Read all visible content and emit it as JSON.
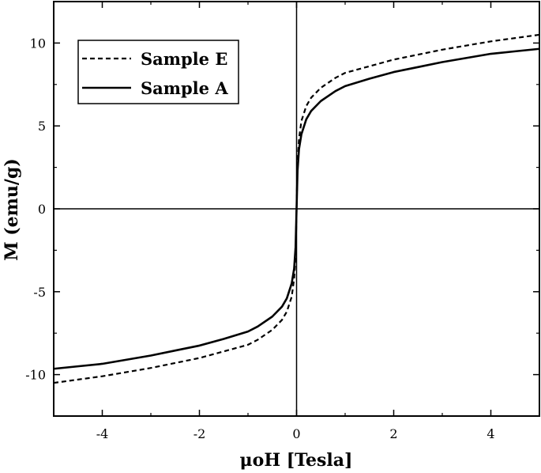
{
  "chart_data": {
    "type": "line",
    "title": "",
    "xlabel": "μoH [Tesla]",
    "ylabel": "M (emu/g)",
    "xlim": [
      -5,
      5
    ],
    "ylim": [
      -12.5,
      12.5
    ],
    "x_ticks": [
      -4,
      -2,
      0,
      2,
      4
    ],
    "x_tick_labels": [
      "-4",
      "-2",
      "0",
      "2",
      "4"
    ],
    "y_ticks": [
      -10,
      -5,
      0,
      5,
      10
    ],
    "y_tick_labels": [
      "-10",
      "-5",
      "0",
      "5",
      "10"
    ],
    "grid": false,
    "legend_position": "top-left",
    "series": [
      {
        "name": "Sample E",
        "line_style": "dashed",
        "color": "#000000",
        "x": [
          0.0,
          0.02,
          0.05,
          0.1,
          0.2,
          0.3,
          0.5,
          0.8,
          1.0,
          1.5,
          2.0,
          2.5,
          3.0,
          3.5,
          4.0,
          4.5,
          5.0
        ],
        "y": [
          0.0,
          2.8,
          4.2,
          5.3,
          6.2,
          6.7,
          7.3,
          7.9,
          8.2,
          8.6,
          9.0,
          9.3,
          9.6,
          9.85,
          10.1,
          10.3,
          10.5
        ]
      },
      {
        "name": "Sample A",
        "line_style": "solid",
        "color": "#000000",
        "x": [
          0.0,
          0.02,
          0.05,
          0.1,
          0.2,
          0.3,
          0.5,
          0.8,
          1.0,
          1.5,
          2.0,
          2.5,
          3.0,
          3.5,
          4.0,
          4.5,
          5.0
        ],
        "y": [
          0.0,
          2.3,
          3.6,
          4.5,
          5.4,
          5.9,
          6.5,
          7.1,
          7.4,
          7.85,
          8.25,
          8.55,
          8.85,
          9.1,
          9.35,
          9.5,
          9.65
        ]
      }
    ]
  }
}
